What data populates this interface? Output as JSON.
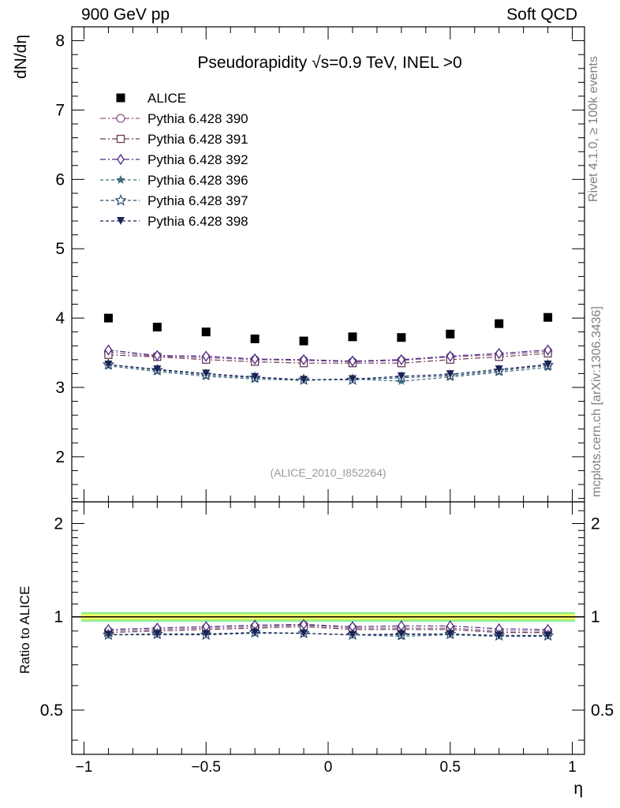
{
  "header": {
    "left": "900 GeV pp",
    "right": "Soft QCD"
  },
  "side_labels": {
    "rivet": "Rivet 4.1.0, ≥ 100k events",
    "mcplots": "mcplots.cern.ch [arXiv:1306.3436]"
  },
  "chart_data": [
    {
      "type": "scatter",
      "title": "Pseudorapidity √s=0.9 TeV, INEL >0",
      "watermark": "(ALICE_2010_I852264)",
      "xlabel": "η",
      "ylabel": "dN/dη",
      "xlim": [
        -1.05,
        1.05
      ],
      "ylim": [
        1.35,
        8.2
      ],
      "yticks": [
        2,
        3,
        4,
        5,
        6,
        7,
        8
      ],
      "ytick_labels": [
        "2",
        "3",
        "4",
        "5",
        "6",
        "7",
        "8"
      ],
      "legend_position": "top-left",
      "x": [
        -0.9,
        -0.7,
        -0.5,
        -0.3,
        -0.1,
        0.1,
        0.3,
        0.5,
        0.7,
        0.9
      ],
      "series": [
        {
          "name": "ALICE",
          "marker": "square-filled",
          "color": "#000000",
          "line": "none",
          "values": [
            4.0,
            3.87,
            3.8,
            3.7,
            3.67,
            3.73,
            3.72,
            3.77,
            3.92,
            4.01
          ]
        },
        {
          "name": "Pythia 6.428 390",
          "marker": "circle-open",
          "color": "#8a5a8a",
          "line": "dashdot",
          "values": [
            3.51,
            3.45,
            3.43,
            3.4,
            3.39,
            3.37,
            3.39,
            3.44,
            3.47,
            3.52
          ]
        },
        {
          "name": "Pythia 6.428 391",
          "marker": "square-open",
          "color": "#6d3b55",
          "line": "dashdot",
          "values": [
            3.47,
            3.44,
            3.4,
            3.37,
            3.35,
            3.35,
            3.35,
            3.4,
            3.44,
            3.49
          ]
        },
        {
          "name": "Pythia 6.428 392",
          "marker": "diamond-open",
          "color": "#4b2a86",
          "line": "dashdot",
          "values": [
            3.54,
            3.46,
            3.45,
            3.41,
            3.4,
            3.38,
            3.4,
            3.45,
            3.49,
            3.54
          ]
        },
        {
          "name": "Pythia 6.428 396",
          "marker": "star-filled",
          "color": "#3d6b7d",
          "line": "dashed",
          "values": [
            3.31,
            3.23,
            3.16,
            3.12,
            3.1,
            3.12,
            3.09,
            3.15,
            3.22,
            3.29
          ]
        },
        {
          "name": "Pythia 6.428 397",
          "marker": "star-open",
          "color": "#2d4f73",
          "line": "dashed",
          "values": [
            3.33,
            3.25,
            3.18,
            3.14,
            3.11,
            3.11,
            3.14,
            3.17,
            3.24,
            3.32
          ]
        },
        {
          "name": "Pythia 6.428 398",
          "marker": "triangle-down-filled",
          "color": "#1a2456",
          "line": "dashed",
          "values": [
            3.33,
            3.26,
            3.2,
            3.15,
            3.11,
            3.12,
            3.16,
            3.19,
            3.26,
            3.33
          ]
        }
      ]
    },
    {
      "type": "line",
      "ylabel": "Ratio to ALICE",
      "xlabel": "η",
      "xlim": [
        -1.05,
        1.05
      ],
      "xticks": [
        -1,
        -0.5,
        0,
        0.5,
        1
      ],
      "xtick_labels": [
        "−1",
        "−0.5",
        "0",
        "0.5",
        "1"
      ],
      "ylim": [
        0.36,
        2.35
      ],
      "yticks": [
        0.5,
        1,
        2
      ],
      "ytick_labels": [
        "0.5",
        "1",
        "2"
      ],
      "ylog": true,
      "reference_line": 1,
      "band_inner": [
        0.98,
        1.02
      ],
      "band_outer": [
        0.965,
        1.035
      ],
      "band_colors": {
        "inner": "#ffff66",
        "outer": "#88ee88"
      },
      "x": [
        -0.9,
        -0.7,
        -0.5,
        -0.3,
        -0.1,
        0.1,
        0.3,
        0.5,
        0.7,
        0.9
      ],
      "series": [
        {
          "name": "Pythia 6.428 390",
          "values": [
            0.9,
            0.91,
            0.92,
            0.93,
            0.94,
            0.92,
            0.92,
            0.92,
            0.9,
            0.9
          ]
        },
        {
          "name": "Pythia 6.428 391",
          "values": [
            0.89,
            0.9,
            0.91,
            0.92,
            0.93,
            0.91,
            0.91,
            0.91,
            0.89,
            0.89
          ]
        },
        {
          "name": "Pythia 6.428 392",
          "values": [
            0.91,
            0.92,
            0.93,
            0.94,
            0.945,
            0.93,
            0.935,
            0.935,
            0.915,
            0.91
          ]
        },
        {
          "name": "Pythia 6.428 396",
          "values": [
            0.875,
            0.875,
            0.875,
            0.885,
            0.885,
            0.875,
            0.865,
            0.875,
            0.865,
            0.865
          ]
        },
        {
          "name": "Pythia 6.428 397",
          "values": [
            0.875,
            0.88,
            0.875,
            0.89,
            0.885,
            0.875,
            0.875,
            0.88,
            0.87,
            0.87
          ]
        },
        {
          "name": "Pythia 6.428 398",
          "values": [
            0.875,
            0.88,
            0.88,
            0.89,
            0.885,
            0.875,
            0.88,
            0.88,
            0.87,
            0.87
          ]
        }
      ]
    }
  ]
}
